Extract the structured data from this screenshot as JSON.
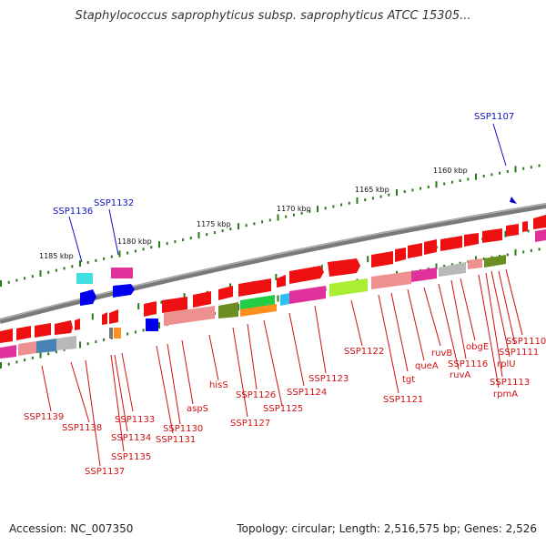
{
  "title": "Staphylococcus saprophyticus subsp. saprophyticus ATCC 15305...",
  "footer": {
    "accession": "Accession: NC_007350",
    "summary": "Topology: circular; Length: 2,516,575 bp; Genes: 2,526"
  },
  "colors": {
    "backbone": "#7a7a7a",
    "tick": "#2a7a1a",
    "label_red": "#d01010",
    "label_blue": "#1010c0"
  },
  "scale_labels": [
    "1160 kbp",
    "1165 kbp",
    "1170 kbp",
    "1175 kbp",
    "1180 kbp",
    "1185 kbp"
  ],
  "gene_labels_top": [
    "SSP1107",
    "SSP1132",
    "SSP1136"
  ],
  "gene_labels_bottom": [
    "SSP1110",
    "SSP1111",
    "rplU",
    "SSP1113",
    "rpmA",
    "obgE",
    "SSP1116",
    "ruvA",
    "ruvB",
    "queA",
    "tgt",
    "SSP1121",
    "SSP1122",
    "SSP1123",
    "SSP1124",
    "SSP1125",
    "SSP1126",
    "SSP1127",
    "hisS",
    "aspS",
    "SSP1130",
    "SSP1131",
    "SSP1133",
    "SSP1134",
    "SSP1135",
    "SSP1137",
    "SSP1138",
    "SSP1139"
  ]
}
